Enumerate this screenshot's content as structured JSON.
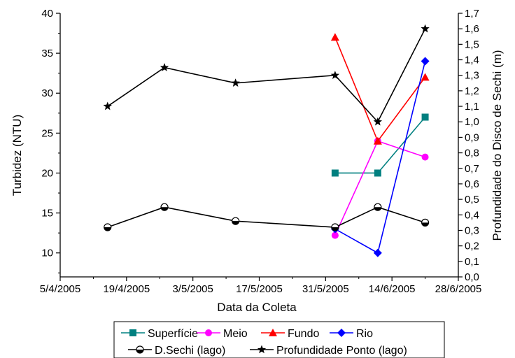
{
  "chart_data": {
    "type": "line",
    "xlabel": "Data da Coleta",
    "ylabel_left": "Turbidez (NTU)",
    "ylabel_right": "Profundidade do Disco de Sechi (m)",
    "x_ticks": [
      "5/4/2005",
      "19/4/2005",
      "3/5/2005",
      "17/5/2005",
      "31/5/2005",
      "14/6/2005",
      "28/6/2005"
    ],
    "xlim": [
      "2005-04-05",
      "2005-06-28"
    ],
    "ylim_left": [
      7,
      40
    ],
    "ylim_right": [
      0.0,
      1.7
    ],
    "y_ticks_left": [
      "10",
      "15",
      "20",
      "25",
      "30",
      "35",
      "40"
    ],
    "y_ticks_right": [
      "0,0",
      "0,1",
      "0,2",
      "0,3",
      "0,4",
      "0,5",
      "0,6",
      "0,7",
      "0,8",
      "0,9",
      "1,0",
      "1,1",
      "1,2",
      "1,3",
      "1,4",
      "1,5",
      "1,6",
      "1,7"
    ],
    "series": [
      {
        "name": "Superfície",
        "axis": "left",
        "color": "#008080",
        "marker": "square",
        "x": [
          "2005-06-02",
          "2005-06-11",
          "2005-06-21"
        ],
        "y": [
          20,
          20,
          27
        ]
      },
      {
        "name": "Meio",
        "axis": "left",
        "color": "#ff00ff",
        "marker": "circle",
        "x": [
          "2005-06-02",
          "2005-06-11",
          "2005-06-21"
        ],
        "y": [
          12.2,
          24,
          22
        ]
      },
      {
        "name": "Fundo",
        "axis": "left",
        "color": "#ff0000",
        "marker": "triangle",
        "x": [
          "2005-06-02",
          "2005-06-11",
          "2005-06-21"
        ],
        "y": [
          37,
          24,
          32
        ]
      },
      {
        "name": "Rio",
        "axis": "left",
        "color": "#0000ff",
        "marker": "diamond",
        "x": [
          "2005-06-02",
          "2005-06-11",
          "2005-06-21"
        ],
        "y": [
          13,
          10,
          34
        ]
      },
      {
        "name": "D.Sechi (lago)",
        "axis": "right",
        "color": "#000000",
        "marker": "halfcircle",
        "x": [
          "2005-04-15",
          "2005-04-27",
          "2005-05-12",
          "2005-06-02",
          "2005-06-11",
          "2005-06-21"
        ],
        "y": [
          0.32,
          0.45,
          0.36,
          0.32,
          0.45,
          0.35
        ]
      },
      {
        "name": "Profundidade Ponto (lago)",
        "axis": "right",
        "color": "#000000",
        "marker": "star",
        "x": [
          "2005-04-15",
          "2005-04-27",
          "2005-05-12",
          "2005-06-02",
          "2005-06-11",
          "2005-06-21"
        ],
        "y": [
          1.1,
          1.35,
          1.25,
          1.3,
          1.0,
          1.6
        ]
      }
    ],
    "legend_position": "bottom",
    "grid": false
  }
}
